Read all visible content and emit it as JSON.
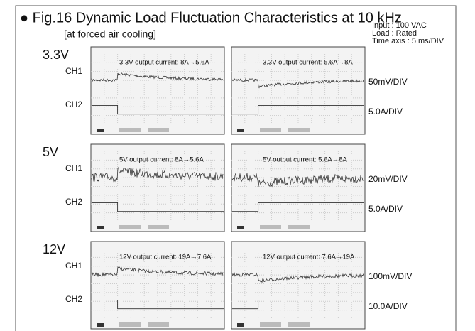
{
  "figure": {
    "title": "● Fig.16  Dynamic Load Fluctuation Characteristics at 10 kHz",
    "subtitle": "[at forced air cooling]",
    "conditions": [
      "Input : 100 VAC",
      "Load : Rated",
      "Time axis : 5 ms/DIV"
    ],
    "rows": [
      {
        "label": "3.3V",
        "ch1": "CH1",
        "ch2": "CH2",
        "ch1_scale": "50mV/DIV",
        "ch2_scale": "5.0A/DIV",
        "panels": [
          "3.3V output current: 8A→5.6A",
          "3.3V output current: 5.6A→8A"
        ]
      },
      {
        "label": "5V",
        "ch1": "CH1",
        "ch2": "CH2",
        "ch1_scale": "20mV/DIV",
        "ch2_scale": "5.0A/DIV",
        "panels": [
          "5V output current: 8A→5.6A",
          "5V output current: 5.6A→8A"
        ]
      },
      {
        "label": "12V",
        "ch1": "CH1",
        "ch2": "CH2",
        "ch1_scale": "100mV/DIV",
        "ch2_scale": "10.0A/DIV",
        "panels": [
          "12V output current: 19A→7.6A",
          "12V output current: 7.6A→19A"
        ]
      }
    ]
  }
}
